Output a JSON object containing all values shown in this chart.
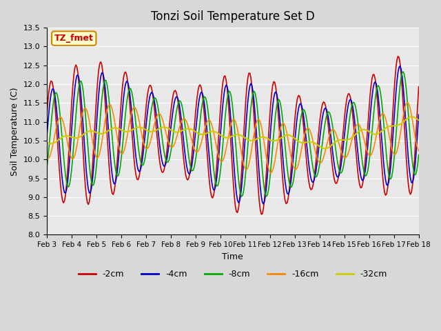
{
  "title": "Tonzi Soil Temperature Set D",
  "xlabel": "Time",
  "ylabel": "Soil Temperature (C)",
  "ylim": [
    8.0,
    13.5
  ],
  "yticks": [
    8.0,
    8.5,
    9.0,
    9.5,
    10.0,
    10.5,
    11.0,
    11.5,
    12.0,
    12.5,
    13.0,
    13.5
  ],
  "xtick_positions": [
    0,
    1,
    2,
    3,
    4,
    5,
    6,
    7,
    8,
    9,
    10,
    11,
    12,
    13,
    14,
    15
  ],
  "xtick_labels": [
    "Feb 3",
    "Feb 4",
    "Feb 5",
    "Feb 6",
    "Feb 7",
    "Feb 8",
    "Feb 9",
    "Feb 10",
    "Feb 11",
    "Feb 12",
    "Feb 13",
    "Feb 14",
    "Feb 15",
    "Feb 16",
    "Feb 17",
    "Feb 18"
  ],
  "legend_labels": [
    "-2cm",
    "-4cm",
    "-8cm",
    "-16cm",
    "-32cm"
  ],
  "colors": {
    "-2cm": "#cc0000",
    "-4cm": "#0000cc",
    "-8cm": "#00aa00",
    "-16cm": "#ff8800",
    "-32cm": "#cccc00"
  },
  "annotation_text": "TZ_fmet",
  "annotation_bg": "#ffffcc",
  "annotation_border": "#cc8800"
}
